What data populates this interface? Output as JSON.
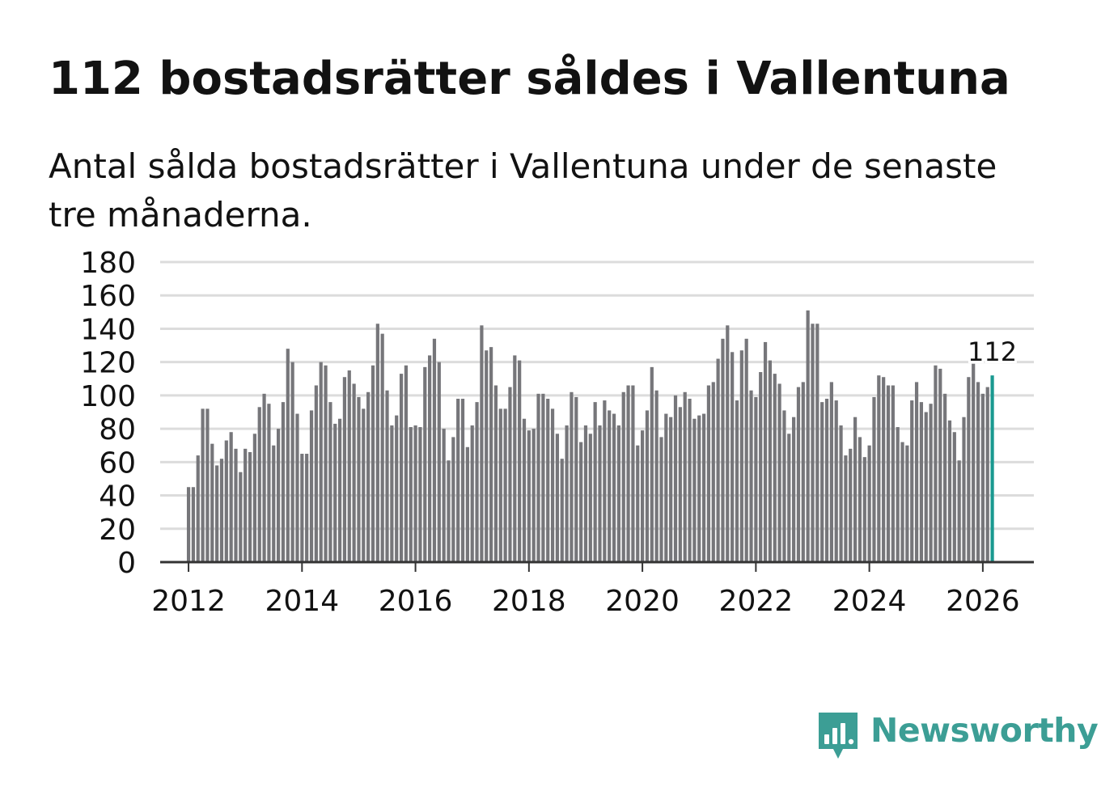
{
  "title": "112 bostadsrätter såldes i Vallentuna",
  "subtitle": "Antal sålda bostadsrätter i Vallentuna under de senaste tre månaderna.",
  "brand": {
    "name": "Newsworthy",
    "icon": "newsworthy-logo-icon",
    "color": "#3c9e95"
  },
  "colors": {
    "bar": "#76767a",
    "highlight": "#1a9990",
    "grid": "#dcdcdc",
    "axis": "#333333",
    "text": "#121212"
  },
  "chart_data": {
    "type": "bar",
    "title": "112 bostadsrätter såldes i Vallentuna",
    "xlabel": "",
    "ylabel": "",
    "ylim": [
      0,
      180
    ],
    "yticks": [
      0,
      20,
      40,
      60,
      80,
      100,
      120,
      140,
      160,
      180
    ],
    "xlim": [
      2011.5,
      2026.9
    ],
    "xticks": [
      2012,
      2014,
      2016,
      2018,
      2020,
      2022,
      2024,
      2026
    ],
    "grid": true,
    "legend": "none",
    "start": {
      "year": 2012,
      "month": 1
    },
    "frequency": "monthly",
    "values": [
      45,
      45,
      64,
      92,
      92,
      71,
      58,
      62,
      73,
      78,
      68,
      54,
      68,
      66,
      77,
      93,
      101,
      95,
      70,
      80,
      96,
      128,
      120,
      89,
      65,
      65,
      91,
      106,
      120,
      118,
      96,
      83,
      86,
      111,
      115,
      107,
      99,
      92,
      102,
      118,
      143,
      137,
      103,
      82,
      88,
      113,
      118,
      81,
      82,
      81,
      117,
      124,
      134,
      120,
      80,
      61,
      75,
      98,
      98,
      69,
      82,
      96,
      142,
      127,
      129,
      106,
      92,
      92,
      105,
      124,
      121,
      86,
      79,
      80,
      101,
      101,
      98,
      92,
      77,
      62,
      82,
      102,
      99,
      72,
      82,
      77,
      96,
      82,
      97,
      91,
      89,
      82,
      102,
      106,
      106,
      70,
      79,
      91,
      117,
      103,
      75,
      89,
      87,
      100,
      93,
      102,
      98,
      86,
      88,
      89,
      106,
      108,
      122,
      134,
      142,
      126,
      97,
      127,
      134,
      103,
      99,
      114,
      132,
      121,
      113,
      107,
      91,
      77,
      87,
      105,
      108,
      151,
      143,
      143,
      96,
      98,
      108,
      97,
      82,
      64,
      68,
      87,
      75,
      63,
      70,
      99,
      112,
      111,
      106,
      106,
      81,
      72,
      70,
      97,
      108,
      96,
      90,
      95,
      118,
      116,
      101,
      85,
      78,
      61,
      87,
      111,
      119,
      108,
      101,
      105,
      112
    ],
    "highlight_last": true,
    "annotation": {
      "text": "112",
      "target": "last"
    }
  }
}
